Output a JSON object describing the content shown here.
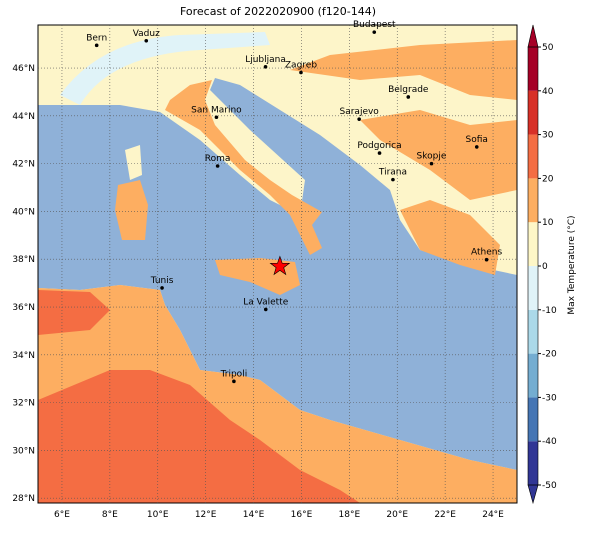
{
  "title": "Forecast of 2022020900 (f120-144)",
  "map": {
    "xlim": [
      5,
      25
    ],
    "ylim": [
      27.8,
      47.8
    ],
    "xticks": [
      {
        "value": 6,
        "label": "6°E"
      },
      {
        "value": 8,
        "label": "8°E"
      },
      {
        "value": 10,
        "label": "10°E"
      },
      {
        "value": 12,
        "label": "12°E"
      },
      {
        "value": 14,
        "label": "14°E"
      },
      {
        "value": 16,
        "label": "16°E"
      },
      {
        "value": 18,
        "label": "18°E"
      },
      {
        "value": 20,
        "label": "20°E"
      },
      {
        "value": 22,
        "label": "22°E"
      },
      {
        "value": 24,
        "label": "24°E"
      }
    ],
    "yticks": [
      {
        "value": 28,
        "label": "28°N"
      },
      {
        "value": 30,
        "label": "30°N"
      },
      {
        "value": 32,
        "label": "32°N"
      },
      {
        "value": 34,
        "label": "34°N"
      },
      {
        "value": 36,
        "label": "36°N"
      },
      {
        "value": 38,
        "label": "38°N"
      },
      {
        "value": 40,
        "label": "40°N"
      },
      {
        "value": 42,
        "label": "42°N"
      },
      {
        "value": 44,
        "label": "44°N"
      },
      {
        "value": 46,
        "label": "46°N"
      }
    ],
    "grid": true,
    "cities": [
      {
        "name": "Bern",
        "lon": 7.45,
        "lat": 46.95
      },
      {
        "name": "Vaduz",
        "lon": 9.52,
        "lat": 47.14
      },
      {
        "name": "Budapest",
        "lon": 19.04,
        "lat": 47.5
      },
      {
        "name": "Ljubljana",
        "lon": 14.5,
        "lat": 46.05
      },
      {
        "name": "Zagreb",
        "lon": 15.98,
        "lat": 45.81
      },
      {
        "name": "Belgrade",
        "lon": 20.46,
        "lat": 44.79
      },
      {
        "name": "San Marino",
        "lon": 12.45,
        "lat": 43.94
      },
      {
        "name": "Sarajevo",
        "lon": 18.41,
        "lat": 43.86
      },
      {
        "name": "Podgorica",
        "lon": 19.26,
        "lat": 42.44
      },
      {
        "name": "Sofia",
        "lon": 23.32,
        "lat": 42.7
      },
      {
        "name": "Skopje",
        "lon": 21.43,
        "lat": 42.0
      },
      {
        "name": "Roma",
        "lon": 12.5,
        "lat": 41.9
      },
      {
        "name": "Tirana",
        "lon": 19.82,
        "lat": 41.33
      },
      {
        "name": "Athens",
        "lon": 23.73,
        "lat": 37.98
      },
      {
        "name": "Tunis",
        "lon": 10.18,
        "lat": 36.8
      },
      {
        "name": "La Valette",
        "lon": 14.51,
        "lat": 35.9
      },
      {
        "name": "Tripoli",
        "lon": 13.18,
        "lat": 32.89
      }
    ],
    "marker": {
      "lon": 15.1,
      "lat": 37.7,
      "color": "#ff0000"
    }
  },
  "colorbar": {
    "label": "Max Temperature (°C)",
    "ticks": [
      -50,
      -40,
      -30,
      -20,
      -10,
      0,
      10,
      20,
      30,
      40,
      50
    ],
    "colors": [
      "#313695",
      "#4575b4",
      "#74add1",
      "#abd9e9",
      "#e0f3f8",
      "#fef7c7",
      "#fdae61",
      "#f46d43",
      "#d73027",
      "#a50026"
    ],
    "extend": "both"
  }
}
